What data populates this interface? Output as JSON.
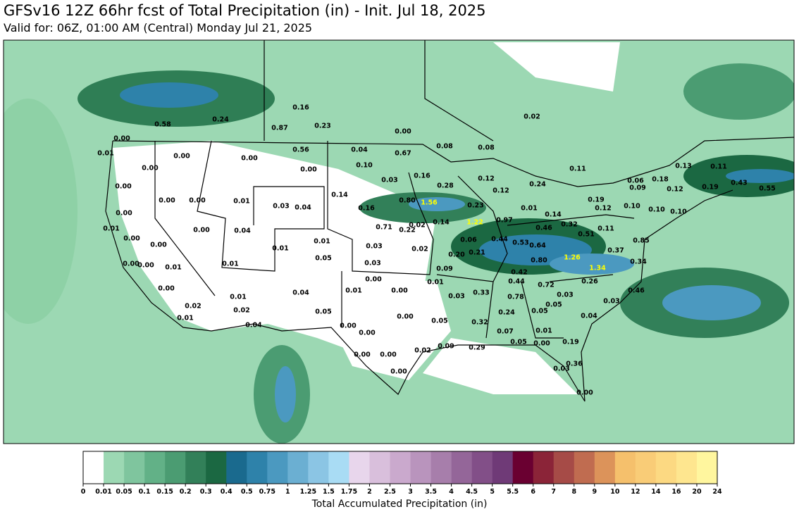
{
  "header": {
    "title": "GFSv16 12Z 66hr fcst of Total Precipitation (in) - Init. Jul 18, 2025",
    "subtitle": "Valid for: 06Z, 01:00 AM (Central) Monday Jul 21, 2025"
  },
  "map": {
    "labels": [
      "0.58",
      "0.24",
      "0.16",
      "0.87",
      "0.23",
      "0.00",
      "0.02",
      "0.00",
      "0.01",
      "0.00",
      "0.00",
      "0.00",
      "0.56",
      "0.04",
      "0.67",
      "0.08",
      "0.08",
      "0.00",
      "0.10",
      "0.11",
      "0.13",
      "0.11",
      "0.03",
      "0.16",
      "0.12",
      "0.24",
      "0.06",
      "0.18",
      "0.00",
      "0.12",
      "0.28",
      "0.09",
      "0.12",
      "0.19",
      "0.43",
      "0.55",
      "0.14",
      "0.00",
      "0.00",
      "0.01",
      "0.03",
      "0.04",
      "0.80",
      "1.56",
      "0.23",
      "0.01",
      "0.19",
      "0.12",
      "0.10",
      "0.10",
      "0.10",
      "0.00",
      "0.16",
      "0.14",
      "0.01",
      "0.00",
      "0.04",
      "0.71",
      "0.22",
      "0.02",
      "0.14",
      "1.22",
      "0.97",
      "0.32",
      "0.46",
      "0.11",
      "0.00",
      "0.51",
      "0.44",
      "0.53",
      "0.64",
      "0.06",
      "0.85",
      "0.00",
      "0.01",
      "0.01",
      "0.03",
      "0.02",
      "0.20",
      "0.21",
      "0.37",
      "1.26",
      "0.05",
      "0.00",
      "0.00",
      "0.01",
      "0.01",
      "0.03",
      "0.80",
      "0.34",
      "1.34",
      "0.09",
      "0.42",
      "0.00",
      "0.01",
      "0.44",
      "0.72",
      "0.26",
      "0.00",
      "0.01",
      "0.00",
      "0.04",
      "0.46",
      "0.01",
      "0.03",
      "0.33",
      "0.78",
      "0.03",
      "0.02",
      "0.02",
      "0.05",
      "0.00",
      "0.24",
      "0.05",
      "0.05",
      "0.03",
      "0.04",
      "0.01",
      "0.32",
      "0.05",
      "0.04",
      "0.00",
      "0.00",
      "0.07",
      "0.01",
      "0.05",
      "0.00",
      "0.19",
      "0.09",
      "0.29",
      "0.00",
      "0.00",
      "0.02",
      "0.36",
      "0.03",
      "0.00",
      "0.00"
    ],
    "colorbar": {
      "label": "Total Accumulated Precipitation (in)",
      "ticks": [
        0,
        0.01,
        0.05,
        0.1,
        0.15,
        0.2,
        0.3,
        0.4,
        0.5,
        0.75,
        1,
        1.25,
        1.5,
        1.75,
        2,
        2.5,
        3,
        3.5,
        4,
        4.5,
        5,
        5.5,
        6,
        7,
        8,
        9,
        10,
        12,
        14,
        16,
        20,
        24
      ],
      "colors": [
        "#ffffff",
        "#9cd8b3",
        "#7fc59e",
        "#62b187",
        "#4b9c72",
        "#328059",
        "#1b6842",
        "#1a6a8e",
        "#2e82aa",
        "#4b99c0",
        "#6bafd2",
        "#8bc5e4",
        "#a9dcf4",
        "#e8d6ec",
        "#d9bfdc",
        "#caa9cd",
        "#b994bd",
        "#a77eab",
        "#946699",
        "#824f88",
        "#6f3a77",
        "#6a0031",
        "#8b2438",
        "#a64b47",
        "#c06c50",
        "#dc935a",
        "#f5c06c",
        "#f9cc77",
        "#fcd982",
        "#fee68f",
        "#fff69e"
      ]
    }
  }
}
